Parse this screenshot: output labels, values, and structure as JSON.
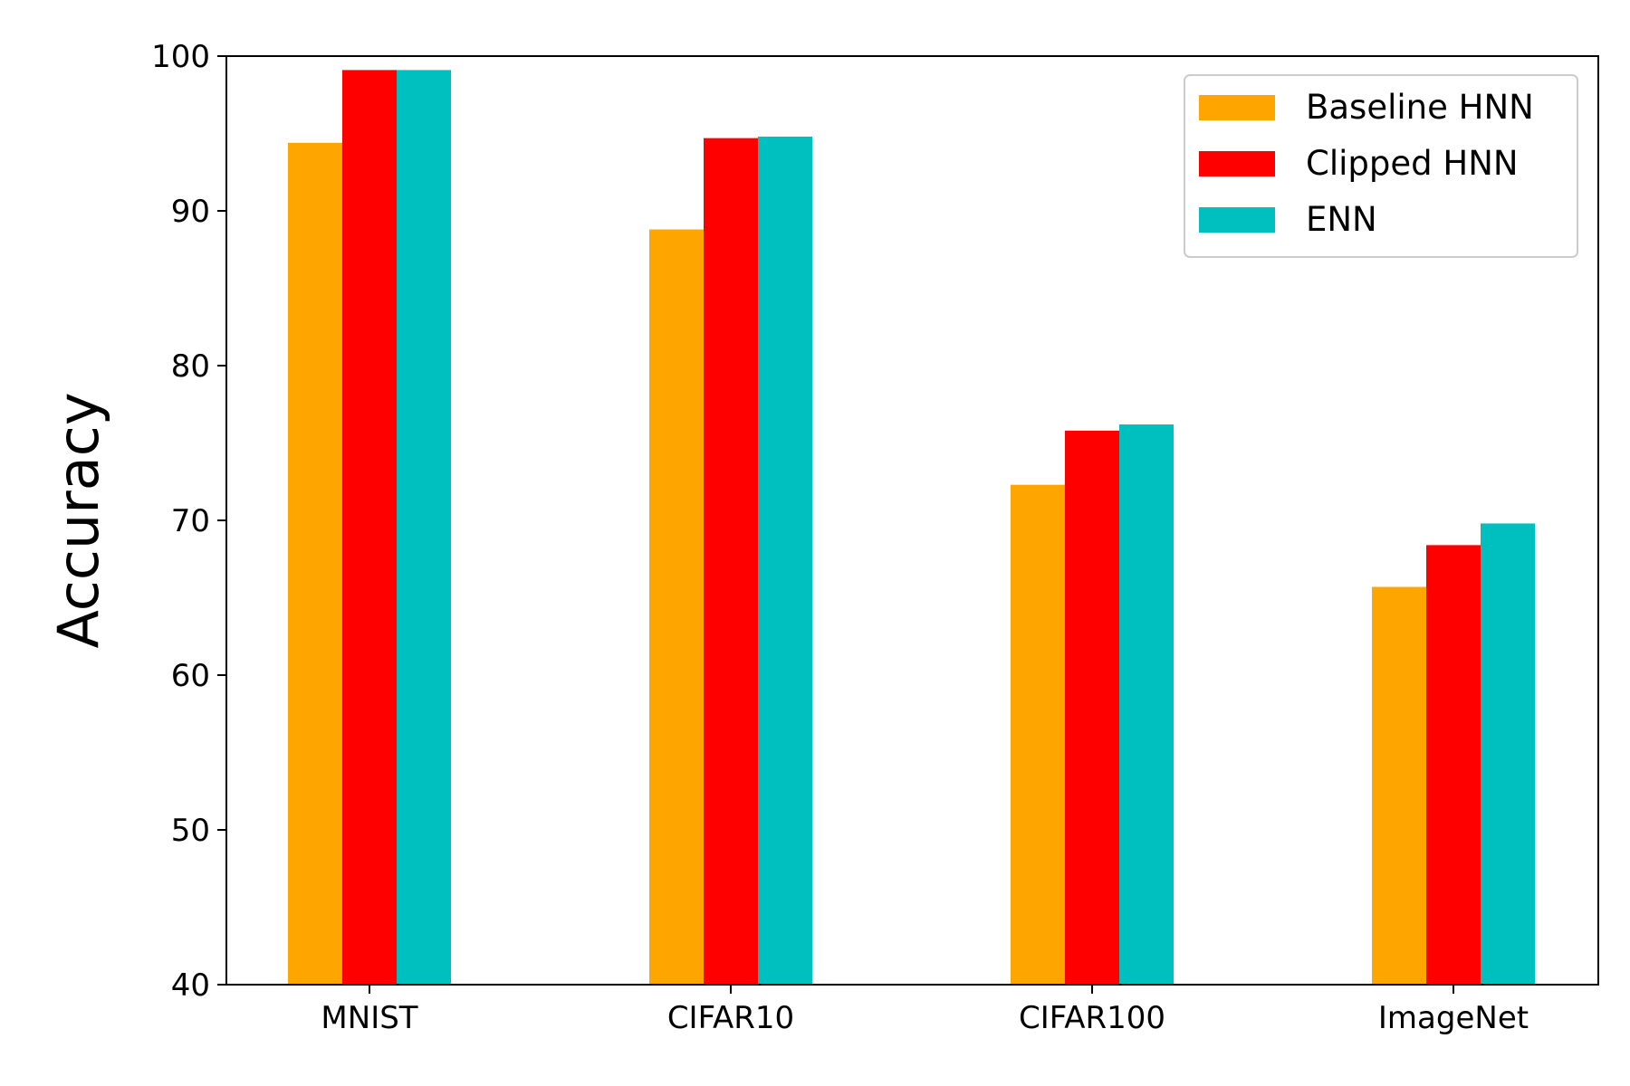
{
  "chart_data": {
    "type": "bar",
    "title": "",
    "xlabel": "",
    "ylabel": "Accuracy",
    "categories": [
      "MNIST",
      "CIFAR10",
      "CIFAR100",
      "ImageNet"
    ],
    "series": [
      {
        "name": "Baseline HNN",
        "color": "#FFA500",
        "values": [
          94.4,
          88.8,
          72.3,
          65.7
        ]
      },
      {
        "name": "Clipped HNN",
        "color": "#FF0000",
        "values": [
          99.1,
          94.7,
          75.8,
          68.4
        ]
      },
      {
        "name": "ENN",
        "color": "#00BFBF",
        "values": [
          99.1,
          94.8,
          76.2,
          69.8
        ]
      }
    ],
    "ylim": [
      40,
      100
    ],
    "yticks": [
      40,
      50,
      60,
      70,
      80,
      90,
      100
    ],
    "grid": false,
    "legend_position": "top-right"
  }
}
